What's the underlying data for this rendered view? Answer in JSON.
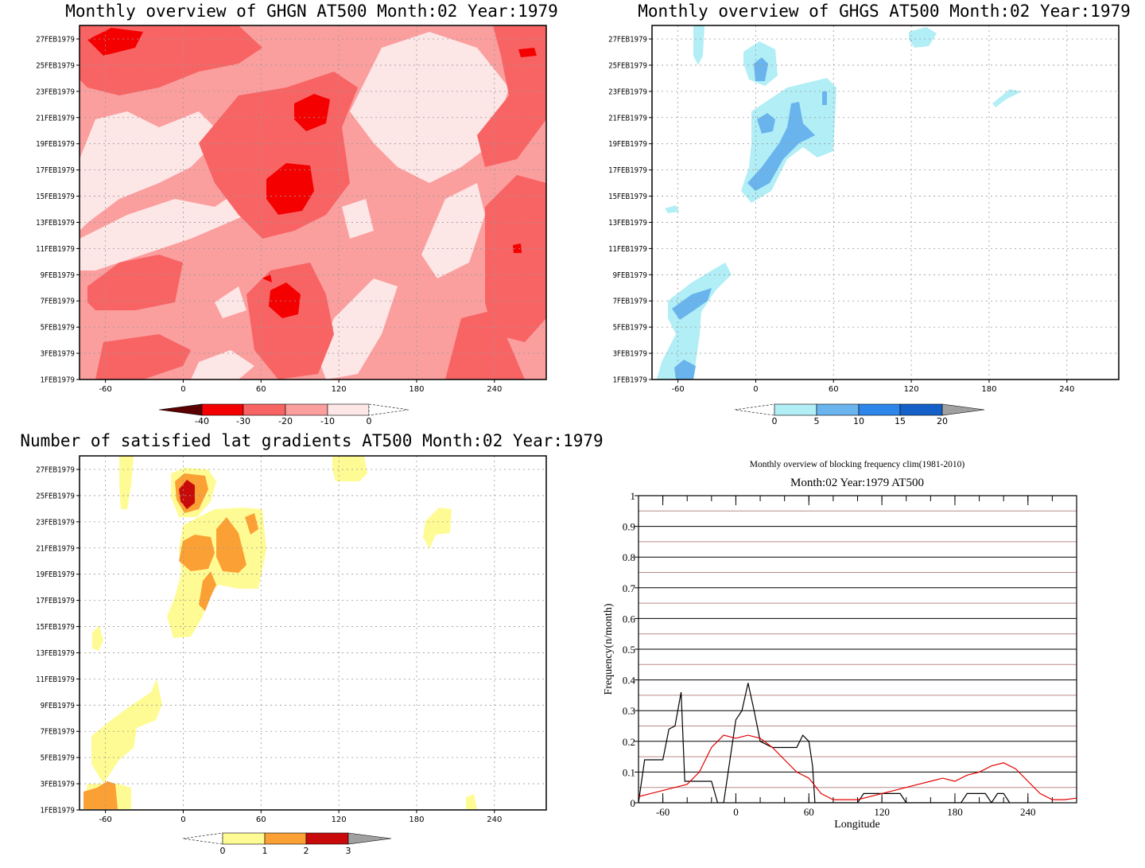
{
  "colors": {
    "red1": "#fde6e6",
    "red2": "#fb9e9e",
    "red3": "#f86464",
    "red4": "#f40000",
    "red5": "#b00000",
    "red6": "#5a0000",
    "blue1": "#b2eef6",
    "blue2": "#6ab4ee",
    "blue3": "#2e86ea",
    "blue4": "#1460c8",
    "yel1": "#fffb94",
    "yel2": "#fba035",
    "yel3": "#c80a0a",
    "grey": "#a0a0a0",
    "black_line": "#000000",
    "red_line": "#e30000",
    "hline": "#b98a8a"
  },
  "panels": {
    "ghgn": {
      "title": "Monthly overview of GHGN AT500 Month:02 Year:1979"
    },
    "ghgs": {
      "title": "Monthly overview of GHGS AT500 Month:02 Year:1979"
    },
    "lat": {
      "title": "Number of satisfied lat gradients AT500 Month:02 Year:1979"
    },
    "freq": {
      "title1": "Monthly overview of blocking frequency clim(1981-2010)",
      "title2": "Month:02 Year:1979  AT500"
    }
  },
  "chart_data": [
    {
      "type": "heatmap",
      "title": "Monthly overview of GHGN AT500 Month:02 Year:1979",
      "x_ticks": [
        "-60",
        "0",
        "60",
        "120",
        "180",
        "240"
      ],
      "y_ticks": [
        "1FEB1979",
        "3FEB1979",
        "5FEB1979",
        "7FEB1979",
        "9FEB1979",
        "11FEB1979",
        "13FEB1979",
        "15FEB1979",
        "17FEB1979",
        "19FEB1979",
        "21FEB1979",
        "23FEB1979",
        "25FEB1979",
        "27FEB1979"
      ],
      "xlim": [
        -80,
        280
      ],
      "colorbar": [
        "-40",
        "-30",
        "-20",
        "-10",
        "0"
      ]
    },
    {
      "type": "heatmap",
      "title": "Monthly overview of GHGS AT500 Month:02 Year:1979",
      "x_ticks": [
        "-60",
        "0",
        "60",
        "120",
        "180",
        "240"
      ],
      "y_ticks": [
        "1FEB1979",
        "3FEB1979",
        "5FEB1979",
        "7FEB1979",
        "9FEB1979",
        "11FEB1979",
        "13FEB1979",
        "15FEB1979",
        "17FEB1979",
        "19FEB1979",
        "21FEB1979",
        "23FEB1979",
        "25FEB1979",
        "27FEB1979"
      ],
      "xlim": [
        -80,
        280
      ],
      "colorbar": [
        "0",
        "5",
        "10",
        "15",
        "20"
      ]
    },
    {
      "type": "heatmap",
      "title": "Number of satisfied lat gradients AT500 Month:02 Year:1979",
      "x_ticks": [
        "-60",
        "0",
        "60",
        "120",
        "180",
        "240"
      ],
      "y_ticks": [
        "1FEB1979",
        "3FEB1979",
        "5FEB1979",
        "7FEB1979",
        "9FEB1979",
        "11FEB1979",
        "13FEB1979",
        "15FEB1979",
        "17FEB1979",
        "19FEB1979",
        "21FEB1979",
        "23FEB1979",
        "25FEB1979",
        "27FEB1979"
      ],
      "xlim": [
        -80,
        280
      ],
      "colorbar": [
        "0",
        "1",
        "2",
        "3"
      ]
    },
    {
      "type": "line",
      "title": "Monthly overview of blocking frequency clim(1981-2010)",
      "subtitle": "Month:02 Year:1979  AT500",
      "xlabel": "Longitude",
      "ylabel": "Frequency(n/month)",
      "xlim": [
        -80,
        280
      ],
      "ylim": [
        0,
        1
      ],
      "x_ticks": [
        "-60",
        "0",
        "60",
        "120",
        "180",
        "240"
      ],
      "y_ticks": [
        "0",
        "0.1",
        "0.2",
        "0.3",
        "0.4",
        "0.5",
        "0.6",
        "0.7",
        "0.8",
        "0.9",
        "1"
      ],
      "series": [
        {
          "color": "#000000",
          "x": [
            -80,
            -75,
            -70,
            -60,
            -55,
            -50,
            -45,
            -42,
            -40,
            -35,
            -30,
            -20,
            -15,
            -10,
            0,
            5,
            10,
            15,
            20,
            30,
            40,
            50,
            55,
            60,
            63,
            65,
            100,
            105,
            115,
            125,
            135,
            140,
            185,
            190,
            200,
            205,
            210,
            215,
            220,
            225
          ],
          "y": [
            0,
            0.14,
            0.14,
            0.14,
            0.24,
            0.25,
            0.36,
            0.07,
            0.07,
            0.07,
            0.07,
            0.07,
            0,
            0,
            0.27,
            0.3,
            0.39,
            0.3,
            0.2,
            0.18,
            0.18,
            0.18,
            0.22,
            0.2,
            0.12,
            0,
            0,
            0.03,
            0.03,
            0.03,
            0.03,
            0,
            0,
            0.03,
            0.03,
            0.03,
            0,
            0.03,
            0.03,
            0
          ]
        },
        {
          "color": "#e30000",
          "x": [
            -80,
            -70,
            -60,
            -50,
            -40,
            -30,
            -20,
            -10,
            0,
            10,
            20,
            30,
            40,
            50,
            60,
            70,
            80,
            90,
            100,
            110,
            120,
            130,
            140,
            150,
            160,
            170,
            180,
            190,
            200,
            210,
            220,
            230,
            240,
            250,
            260,
            270,
            280
          ],
          "y": [
            0.02,
            0.03,
            0.04,
            0.05,
            0.06,
            0.1,
            0.18,
            0.22,
            0.21,
            0.22,
            0.21,
            0.18,
            0.14,
            0.1,
            0.08,
            0.03,
            0.01,
            0.01,
            0.01,
            0.02,
            0.03,
            0.04,
            0.05,
            0.06,
            0.07,
            0.08,
            0.07,
            0.09,
            0.1,
            0.12,
            0.13,
            0.11,
            0.07,
            0.03,
            0.01,
            0.01,
            0.015
          ]
        }
      ]
    }
  ]
}
